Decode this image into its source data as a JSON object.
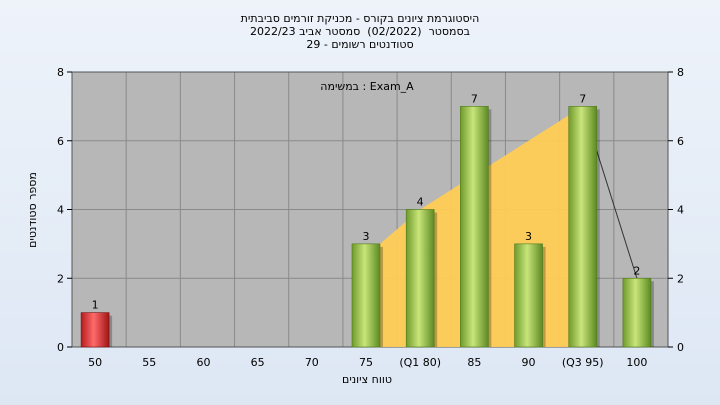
{
  "title": {
    "line1": "היסטוגרמת ציונים בקורס - מכניקת זורמים סביבתית",
    "line2": "בסמסטר  (02/2022)  סמסטר אביב 2022/23",
    "line3": "סטודנטים רשומים - 29"
  },
  "task_label": "במשימה : Exam_A",
  "chart_data": {
    "type": "bar",
    "categories": [
      "50",
      "55",
      "60",
      "65",
      "70",
      "75",
      "(Q1 80)",
      "85",
      "90",
      "(Q3 95)",
      "100"
    ],
    "values": [
      1,
      0,
      0,
      0,
      0,
      3,
      4,
      7,
      3,
      7,
      2
    ],
    "xlabel": "טווח ציונים",
    "ylabel": "מספר סטודנטים",
    "ylim": [
      0,
      8
    ],
    "yticks": [
      "0",
      "2",
      "4",
      "6",
      "8"
    ],
    "dual_y_axis": true,
    "grid": true,
    "highlight_category": "50",
    "quartile_band": {
      "from": "75",
      "to": "(Q3 95)"
    },
    "colors": {
      "plot_background": "#b7b7b7",
      "bar_green": "#8fc04a",
      "bar_red": "#d83030",
      "band": "#ffcc55"
    }
  }
}
